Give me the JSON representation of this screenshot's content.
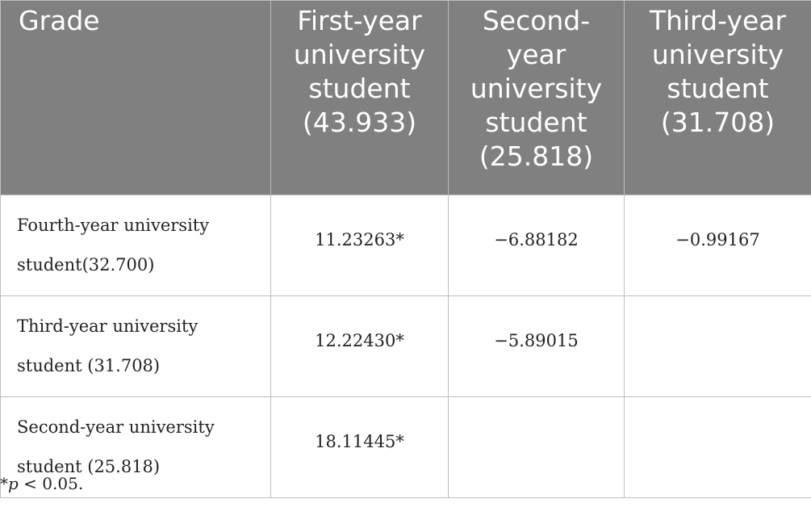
{
  "table": {
    "header": [
      "Grade",
      "First-year university student (43.933)",
      "Second-year university student (25.818)",
      "Third-year university student (31.708)"
    ],
    "rows": [
      {
        "label": "Fourth-year university student(32.700)",
        "values": [
          "11.23263*",
          "−6.88182",
          "−0.99167"
        ]
      },
      {
        "label": "Third-year university student (31.708)",
        "values": [
          "12.22430*",
          "−5.89015",
          ""
        ]
      },
      {
        "label": "Second-year university student (25.818)",
        "values": [
          "18.11445*",
          "",
          ""
        ]
      }
    ]
  },
  "footnote": {
    "prefix": "*",
    "symbol": "p",
    "text": " < 0.05."
  }
}
